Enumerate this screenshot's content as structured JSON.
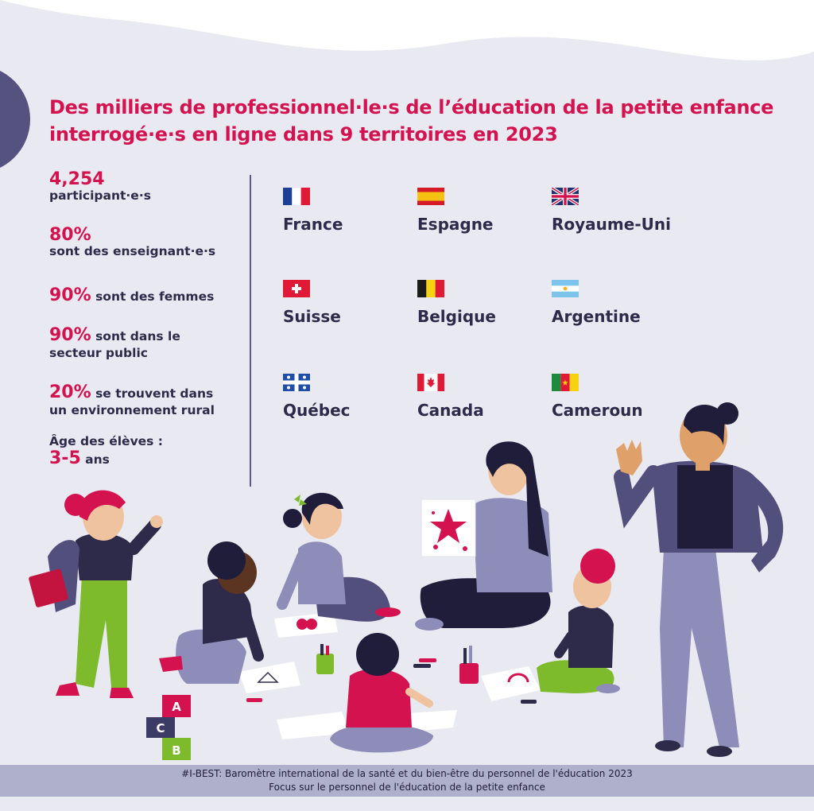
{
  "title": "Des milliers de professionnel·le·s de l’éducation de la petite enfance interrogé·e·s en ligne dans 9 territoires en 2023",
  "stats": {
    "participants_value": "4,254",
    "participants_label": "participant·e·s",
    "teachers_value": "80%",
    "teachers_label": "sont des enseignant·e·s",
    "women_value": "90%",
    "women_label": "sont des femmes",
    "public_value": "90%",
    "public_label_1": "sont dans le",
    "public_label_2": "secteur public",
    "rural_value": "20%",
    "rural_label_1": "se trouvent dans",
    "rural_label_2": "un environnement rural",
    "age_label": "Âge des élèves :",
    "age_value": "3-5",
    "age_unit": "ans"
  },
  "countries": [
    {
      "name": "France",
      "flag": "france-flag-icon"
    },
    {
      "name": "Espagne",
      "flag": "spain-flag-icon"
    },
    {
      "name": "Royaume-Uni",
      "flag": "uk-flag-icon"
    },
    {
      "name": "Suisse",
      "flag": "switzerland-flag-icon"
    },
    {
      "name": "Belgique",
      "flag": "belgium-flag-icon"
    },
    {
      "name": "Argentine",
      "flag": "argentina-flag-icon"
    },
    {
      "name": "Québec",
      "flag": "quebec-flag-icon"
    },
    {
      "name": "Canada",
      "flag": "canada-flag-icon"
    },
    {
      "name": "Cameroun",
      "flag": "cameroon-flag-icon"
    }
  ],
  "blocks": [
    "A",
    "C",
    "B"
  ],
  "footer": {
    "line1": "#I-BEST: Baromètre international de la santé et du bien-être du personnel de l'éducation 2023",
    "line2": "Focus sur le personnel de l'éducation de la petite enfance"
  },
  "colors": {
    "accent": "#d3124f",
    "navy": "#2d2a4a",
    "background": "#e9e9f1",
    "footer": "#aeb0cc"
  }
}
